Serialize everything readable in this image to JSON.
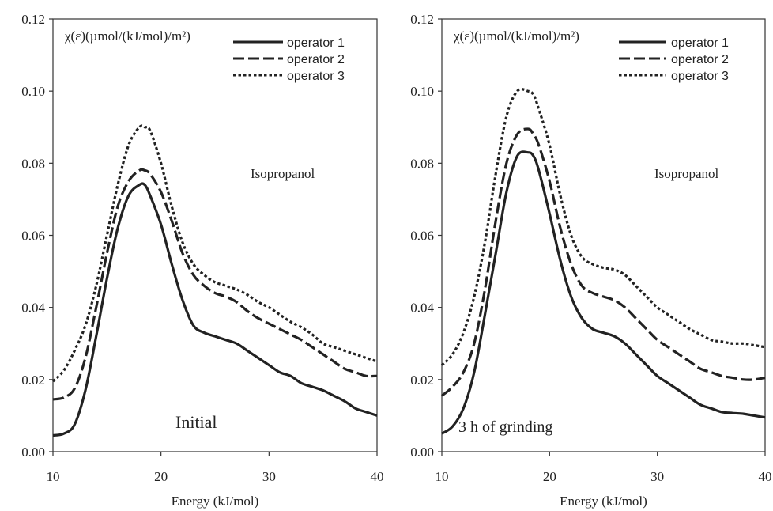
{
  "chart_data": [
    {
      "type": "line",
      "ylabel": "χ(ε)(µmol/(kJ/mol)/m²)",
      "xlabel": "Energy (kJ/mol)",
      "xlim": [
        10,
        40
      ],
      "ylim": [
        0,
        0.12
      ],
      "xticks": [
        "10",
        "20",
        "30",
        "40"
      ],
      "yticks": [
        "0.00",
        "0.02",
        "0.04",
        "0.06",
        "0.08",
        "0.10",
        "0.12"
      ],
      "grid": false,
      "legend_position": "top-right",
      "annotations": [
        "Isopropanol",
        "Initial"
      ],
      "series": [
        {
          "name": "operator 1",
          "style": "solid",
          "x": [
            10,
            11,
            12,
            13,
            14,
            15,
            16,
            17,
            18,
            18.5,
            19,
            20,
            21,
            22,
            23,
            24,
            25,
            26,
            27,
            28,
            29,
            30,
            31,
            32,
            33,
            34,
            35,
            36,
            37,
            38,
            39,
            40
          ],
          "y": [
            0.0045,
            0.005,
            0.0075,
            0.017,
            0.032,
            0.048,
            0.062,
            0.071,
            0.074,
            0.074,
            0.071,
            0.063,
            0.052,
            0.042,
            0.035,
            0.033,
            0.032,
            0.031,
            0.03,
            0.028,
            0.026,
            0.024,
            0.022,
            0.021,
            0.019,
            0.018,
            0.017,
            0.0155,
            0.014,
            0.012,
            0.011,
            0.01
          ]
        },
        {
          "name": "operator 2",
          "style": "dashed",
          "x": [
            10,
            11,
            12,
            13,
            14,
            15,
            16,
            17,
            18,
            18.5,
            19,
            20,
            21,
            22,
            23,
            24,
            25,
            26,
            27,
            28,
            29,
            30,
            31,
            32,
            33,
            34,
            35,
            36,
            37,
            38,
            39,
            40
          ],
          "y": [
            0.0145,
            0.015,
            0.0175,
            0.026,
            0.04,
            0.055,
            0.068,
            0.075,
            0.078,
            0.078,
            0.077,
            0.072,
            0.064,
            0.055,
            0.049,
            0.046,
            0.044,
            0.043,
            0.0415,
            0.039,
            0.037,
            0.0355,
            0.034,
            0.0325,
            0.031,
            0.029,
            0.027,
            0.025,
            0.023,
            0.022,
            0.021,
            0.021
          ]
        },
        {
          "name": "operator 3",
          "style": "dotted",
          "x": [
            10,
            11,
            12,
            13,
            14,
            15,
            16,
            17,
            18,
            18.5,
            19,
            20,
            21,
            22,
            23,
            24,
            25,
            26,
            27,
            28,
            29,
            30,
            31,
            32,
            33,
            34,
            35,
            36,
            37,
            38,
            39,
            40
          ],
          "y": [
            0.0195,
            0.0225,
            0.028,
            0.035,
            0.046,
            0.06,
            0.074,
            0.085,
            0.09,
            0.09,
            0.089,
            0.08,
            0.068,
            0.058,
            0.052,
            0.049,
            0.047,
            0.046,
            0.045,
            0.0435,
            0.0415,
            0.04,
            0.038,
            0.036,
            0.0345,
            0.0325,
            0.03,
            0.029,
            0.028,
            0.027,
            0.026,
            0.025
          ]
        }
      ]
    },
    {
      "type": "line",
      "ylabel": "χ(ε)(µmol/(kJ/mol)/m²)",
      "xlabel": "Energy (kJ/mol)",
      "xlim": [
        10,
        40
      ],
      "ylim": [
        0,
        0.12
      ],
      "xticks": [
        "10",
        "20",
        "30",
        "40"
      ],
      "yticks": [
        "0.00",
        "0.02",
        "0.04",
        "0.06",
        "0.08",
        "0.10",
        "0.12"
      ],
      "grid": false,
      "legend_position": "top-right",
      "annotations": [
        "Isopropanol",
        "3 h of grinding"
      ],
      "series": [
        {
          "name": "operator 1",
          "style": "solid",
          "x": [
            10,
            11,
            12,
            13,
            14,
            15,
            16,
            17,
            18,
            18.5,
            19,
            20,
            21,
            22,
            23,
            24,
            25,
            26,
            27,
            28,
            29,
            30,
            31,
            32,
            33,
            34,
            35,
            36,
            37,
            38,
            39,
            40
          ],
          "y": [
            0.005,
            0.007,
            0.012,
            0.022,
            0.038,
            0.055,
            0.072,
            0.082,
            0.083,
            0.082,
            0.078,
            0.066,
            0.053,
            0.043,
            0.037,
            0.034,
            0.033,
            0.032,
            0.03,
            0.027,
            0.024,
            0.021,
            0.019,
            0.017,
            0.015,
            0.013,
            0.012,
            0.011,
            0.0107,
            0.0105,
            0.01,
            0.0095
          ]
        },
        {
          "name": "operator 2",
          "style": "dashed",
          "x": [
            10,
            11,
            12,
            13,
            14,
            15,
            16,
            17,
            18,
            18.5,
            19,
            20,
            21,
            22,
            23,
            24,
            25,
            26,
            27,
            28,
            29,
            30,
            31,
            32,
            33,
            34,
            35,
            36,
            37,
            38,
            39,
            40
          ],
          "y": [
            0.0155,
            0.018,
            0.022,
            0.03,
            0.045,
            0.064,
            0.08,
            0.088,
            0.0895,
            0.088,
            0.085,
            0.075,
            0.062,
            0.052,
            0.046,
            0.044,
            0.043,
            0.042,
            0.04,
            0.037,
            0.034,
            0.031,
            0.029,
            0.027,
            0.025,
            0.023,
            0.022,
            0.021,
            0.0205,
            0.02,
            0.02,
            0.0205
          ]
        },
        {
          "name": "operator 3",
          "style": "dotted",
          "x": [
            10,
            11,
            12,
            13,
            14,
            15,
            16,
            17,
            18,
            18.5,
            19,
            20,
            21,
            22,
            23,
            24,
            25,
            26,
            27,
            28,
            29,
            30,
            31,
            32,
            33,
            34,
            35,
            36,
            37,
            38,
            39,
            40
          ],
          "y": [
            0.024,
            0.027,
            0.033,
            0.043,
            0.058,
            0.077,
            0.093,
            0.1,
            0.1,
            0.099,
            0.095,
            0.085,
            0.071,
            0.06,
            0.054,
            0.052,
            0.051,
            0.0505,
            0.049,
            0.046,
            0.043,
            0.04,
            0.038,
            0.036,
            0.034,
            0.0325,
            0.031,
            0.0305,
            0.03,
            0.03,
            0.0295,
            0.029
          ]
        }
      ]
    }
  ]
}
